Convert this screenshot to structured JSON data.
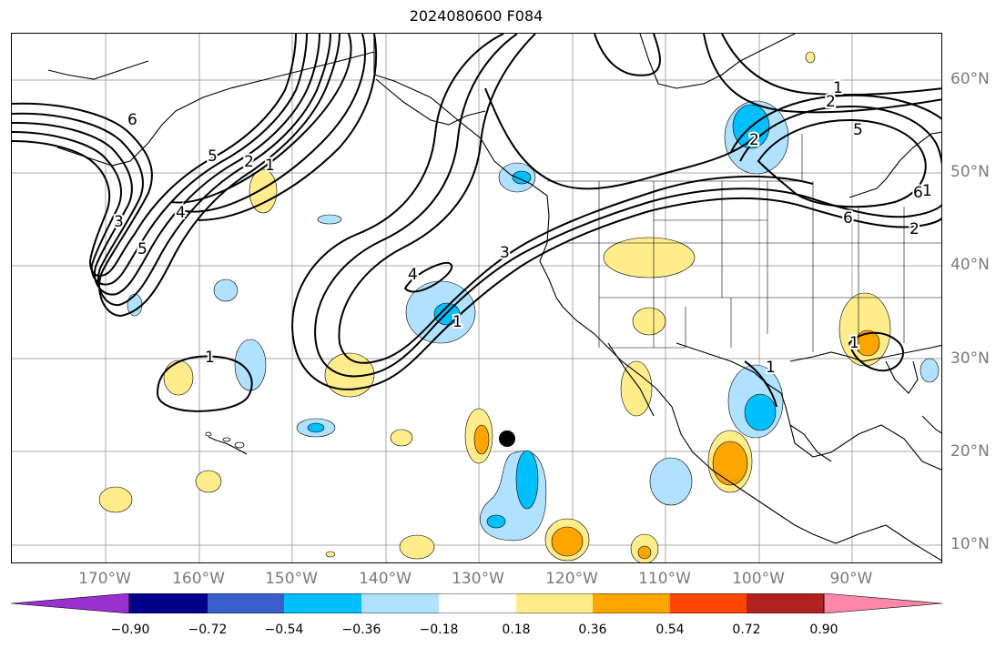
{
  "title": "2024080600 F084",
  "lat_labels": [
    "60°N",
    "50°N",
    "40°N",
    "30°N",
    "20°N",
    "10°N"
  ],
  "lon_labels": [
    "170°W",
    "160°W",
    "150°W",
    "140°W",
    "130°W",
    "120°W",
    "110°W",
    "100°W",
    "90°W"
  ],
  "colorbar": {
    "ticks": [
      "−0.90",
      "−0.72",
      "−0.54",
      "−0.36",
      "−0.18",
      "0.18",
      "0.36",
      "0.54",
      "0.72",
      "0.90"
    ],
    "colors": [
      "#9b30d0",
      "#00008b",
      "#3a5fcd",
      "#00bfff",
      "#b0e2ff",
      "#ffffff",
      "#ffec8b",
      "#ffa500",
      "#ff4500",
      "#b22222",
      "#ff88aa"
    ]
  },
  "contour_labels": [
    "1",
    "2",
    "5",
    "6",
    "1",
    "2",
    "3",
    "4",
    "5",
    "6",
    "1",
    "2",
    "3",
    "4",
    "1",
    "1",
    "5",
    "6",
    "1",
    "2",
    "1"
  ],
  "colors": {
    "positive_light": "#ffec8b",
    "positive_mid": "#ffa500",
    "negative_light": "#b0e2ff",
    "negative_mid": "#00bfff",
    "contour": "#000000",
    "grid": "#a9a9a9",
    "marker": "#000000"
  }
}
